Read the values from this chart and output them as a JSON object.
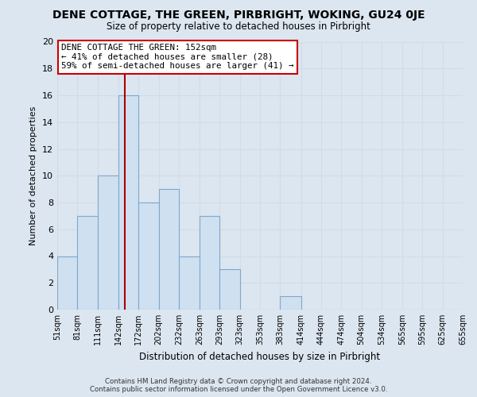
{
  "title": "DENE COTTAGE, THE GREEN, PIRBRIGHT, WOKING, GU24 0JE",
  "subtitle": "Size of property relative to detached houses in Pirbright",
  "xlabel": "Distribution of detached houses by size in Pirbright",
  "ylabel": "Number of detached properties",
  "bin_edges": [
    51,
    81,
    111,
    142,
    172,
    202,
    232,
    263,
    293,
    323,
    353,
    383,
    414,
    444,
    474,
    504,
    534,
    565,
    595,
    625,
    655
  ],
  "counts": [
    4,
    7,
    10,
    16,
    8,
    9,
    4,
    7,
    3,
    0,
    0,
    1,
    0,
    0,
    0,
    0,
    0,
    0,
    0,
    0
  ],
  "tick_labels": [
    "51sqm",
    "81sqm",
    "111sqm",
    "142sqm",
    "172sqm",
    "202sqm",
    "232sqm",
    "263sqm",
    "293sqm",
    "323sqm",
    "353sqm",
    "383sqm",
    "414sqm",
    "444sqm",
    "474sqm",
    "504sqm",
    "534sqm",
    "565sqm",
    "595sqm",
    "625sqm",
    "655sqm"
  ],
  "bar_color": "#cfe0f0",
  "bar_edge_color": "#7fa8cc",
  "property_line_x": 152,
  "property_line_color": "#aa0000",
  "annotation_text": "DENE COTTAGE THE GREEN: 152sqm\n← 41% of detached houses are smaller (28)\n59% of semi-detached houses are larger (41) →",
  "annotation_box_color": "#ffffff",
  "annotation_box_edge": "#cc0000",
  "ylim": [
    0,
    20
  ],
  "yticks": [
    0,
    2,
    4,
    6,
    8,
    10,
    12,
    14,
    16,
    18,
    20
  ],
  "grid_color": "#d0dce8",
  "bg_color": "#dce6f0",
  "plot_bg_color": "#dce6f0",
  "footer_line1": "Contains HM Land Registry data © Crown copyright and database right 2024.",
  "footer_line2": "Contains public sector information licensed under the Open Government Licence v3.0."
}
